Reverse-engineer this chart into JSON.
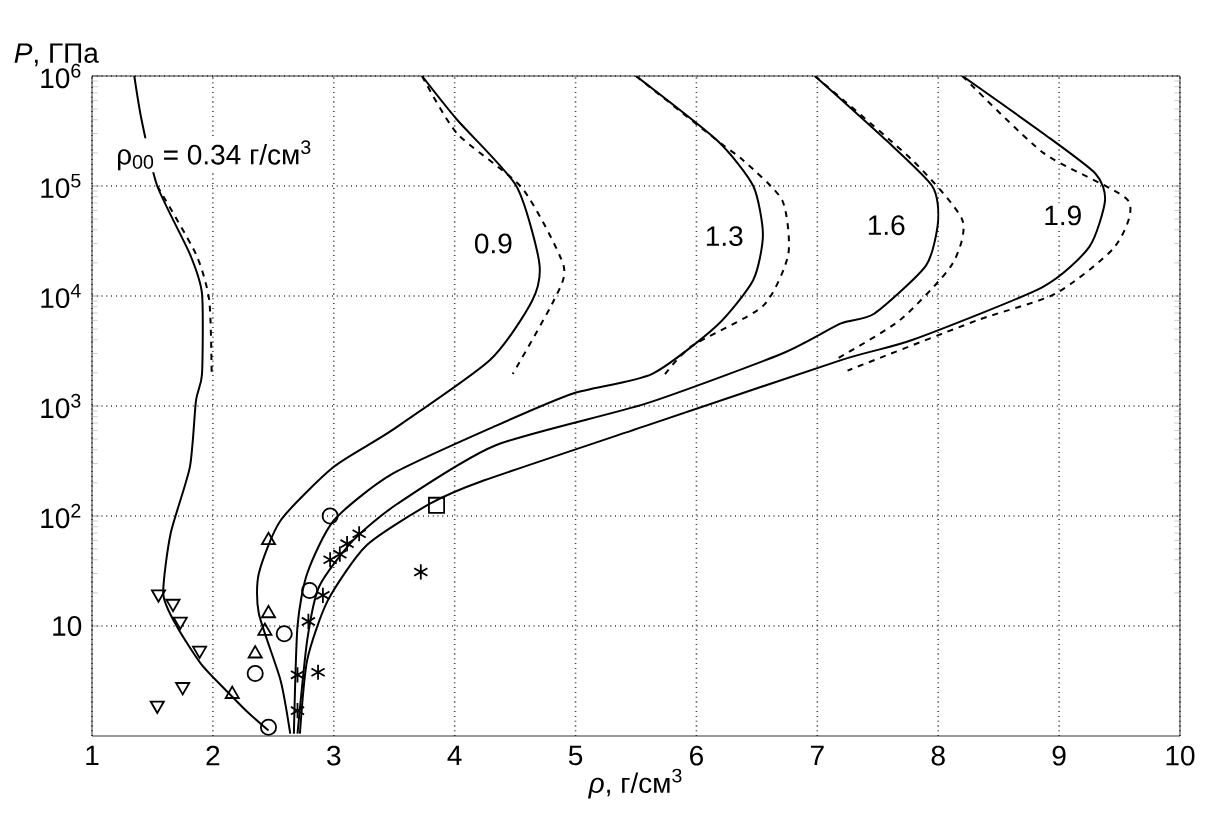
{
  "chart_data": {
    "type": "line",
    "xlabel": "*ρ*, г/см$^{3}$",
    "ylabel": "*P*, ГПа",
    "xlim": [
      1,
      10
    ],
    "ylim": [
      1,
      1000000
    ],
    "xticks": [
      1,
      2,
      3,
      4,
      5,
      6,
      7,
      8,
      9,
      10
    ],
    "yticks": [
      10,
      {
        "value": 100,
        "label": "10$^{2}$"
      },
      {
        "value": 1000,
        "label": "10$^{3}$"
      },
      {
        "value": 10000,
        "label": "10$^{4}$"
      },
      {
        "value": 100000,
        "label": "10$^{5}$"
      },
      {
        "value": 1000000,
        "label": "10$^{6}$"
      }
    ],
    "log": "y",
    "grid": true,
    "annotations": [
      "ρ$_{00}$ = 0.34 г/см$^{3}$",
      {
        "text": "0.9",
        "x": 4.32,
        "y": 30000
      },
      {
        "text": "1.3",
        "x": 6.23,
        "y": 35000
      },
      {
        "text": "1.6",
        "x": 7.57,
        "y": 44000
      },
      {
        "text": "1.9",
        "x": 9.03,
        "y": 54000
      }
    ],
    "series": [
      {
        "type": "line",
        "line_style": "solid",
        "color": "#000000",
        "x": [
          1.35,
          1.41,
          1.54,
          1.81,
          1.91,
          1.91,
          1.86,
          1.81,
          1.65,
          1.59,
          1.7,
          1.91,
          2.14,
          2.3,
          2.46
        ],
        "values": [
          1000000,
          400000,
          100000,
          24000,
          10500,
          1950,
          1120,
          280,
          69,
          19.5,
          10,
          4.4,
          2.4,
          1.6,
          1.12
        ]
      },
      {
        "type": "line",
        "line_style": "dashed",
        "color": "#000000",
        "x": [
          1.54,
          1.86,
          1.97,
          1.99
        ],
        "values": [
          100000,
          24000,
          9100,
          1950
        ]
      },
      {
        "type": "line",
        "line_style": "solid",
        "color": "#000000",
        "x": [
          3.73,
          4.02,
          4.51,
          4.7,
          4.64,
          4.29,
          3.48,
          3.0,
          2.56,
          2.38,
          2.38,
          2.56,
          2.64
        ],
        "values": [
          1000000,
          400000,
          100000,
          20000,
          9000,
          2600,
          600,
          280,
          91,
          30,
          13,
          3.2,
          1.05
        ]
      },
      {
        "type": "line",
        "line_style": "dashed",
        "color": "#000000",
        "x": [
          3.73,
          4.02,
          4.56,
          4.9,
          4.82,
          4.48
        ],
        "values": [
          1000000,
          300000,
          95000,
          19000,
          9100,
          1950
        ]
      },
      {
        "type": "line",
        "line_style": "solid",
        "color": "#000000",
        "x": [
          5.5,
          6.17,
          6.47,
          6.55,
          6.47,
          6.17,
          5.63,
          4.98,
          4.34,
          3.48,
          3.0,
          2.78,
          2.7,
          2.67
        ],
        "values": [
          1000000,
          260000,
          100000,
          36000,
          14000,
          5400,
          1950,
          1300,
          660,
          240,
          91,
          30,
          10,
          1.05
        ]
      },
      {
        "type": "line",
        "line_style": "dashed",
        "color": "#000000",
        "x": [
          5.5,
          6.17,
          6.39,
          6.71,
          6.76,
          6.55,
          5.96,
          5.74
        ],
        "values": [
          1000000,
          260000,
          170000,
          74000,
          24000,
          8100,
          3500,
          1950
        ]
      },
      {
        "type": "line",
        "line_style": "solid",
        "color": "#000000",
        "x": [
          6.98,
          7.57,
          7.95,
          8.0,
          7.9,
          7.47,
          7.19,
          6.71,
          5.58,
          4.34,
          3.53,
          3.16,
          2.88,
          2.78,
          2.7
        ],
        "values": [
          1000000,
          260000,
          100000,
          49000,
          19000,
          6900,
          5600,
          3000,
          1050,
          440,
          130,
          60,
          23,
          7.4,
          1.05
        ]
      },
      {
        "type": "line",
        "line_style": "dashed",
        "color": "#000000",
        "x": [
          6.98,
          7.79,
          8.2,
          8.11,
          7.68,
          7.14
        ],
        "values": [
          1000000,
          170000,
          49000,
          19000,
          6000,
          2600
        ]
      },
      {
        "type": "line",
        "line_style": "solid",
        "color": "#000000",
        "x": [
          8.2,
          8.87,
          9.3,
          9.38,
          9.25,
          8.86,
          7.79,
          7.19,
          5.58,
          4.24,
          3.8,
          3.27,
          2.95,
          2.78,
          2.72
        ],
        "values": [
          1000000,
          300000,
          130000,
          74000,
          28000,
          12000,
          4000,
          2600,
          660,
          210,
          130,
          54,
          17,
          4.9,
          1.05
        ]
      },
      {
        "type": "line",
        "line_style": "dashed",
        "color": "#000000",
        "x": [
          8.2,
          8.87,
          9.57,
          9.46,
          8.97,
          8.32,
          7.25
        ],
        "values": [
          1000000,
          200000,
          74000,
          28000,
          10500,
          6000,
          2100
        ]
      },
      {
        "type": "scatter",
        "marker": "triangle",
        "color": "#000000",
        "x": [
          2.46,
          2.46,
          2.43,
          2.35,
          2.16
        ],
        "values": [
          60,
          13,
          9,
          5.6,
          2.4
        ]
      },
      {
        "type": "scatter",
        "marker": "triangle-down",
        "color": "#000000",
        "x": [
          1.55,
          1.67,
          1.73,
          1.89,
          1.75,
          1.54
        ],
        "values": [
          19.5,
          16,
          11,
          6,
          2.8,
          1.9
        ]
      },
      {
        "type": "scatter",
        "marker": "circle",
        "color": "#000000",
        "x": [
          2.97,
          2.8,
          2.59,
          2.35,
          2.46
        ],
        "values": [
          100,
          21,
          8.5,
          3.7,
          1.2
        ]
      },
      {
        "type": "scatter",
        "marker": "cross",
        "color": "#000000",
        "x": [
          2.7,
          2.87,
          2.7,
          2.79,
          2.91,
          2.97,
          3.05,
          3.11,
          3.21,
          3.72
        ],
        "values": [
          1.7,
          3.8,
          3.6,
          11,
          19,
          40,
          45,
          56,
          69,
          31
        ]
      },
      {
        "type": "scatter",
        "marker": "square",
        "color": "#000000",
        "x": [
          3.85
        ],
        "values": [
          125
        ]
      }
    ]
  }
}
